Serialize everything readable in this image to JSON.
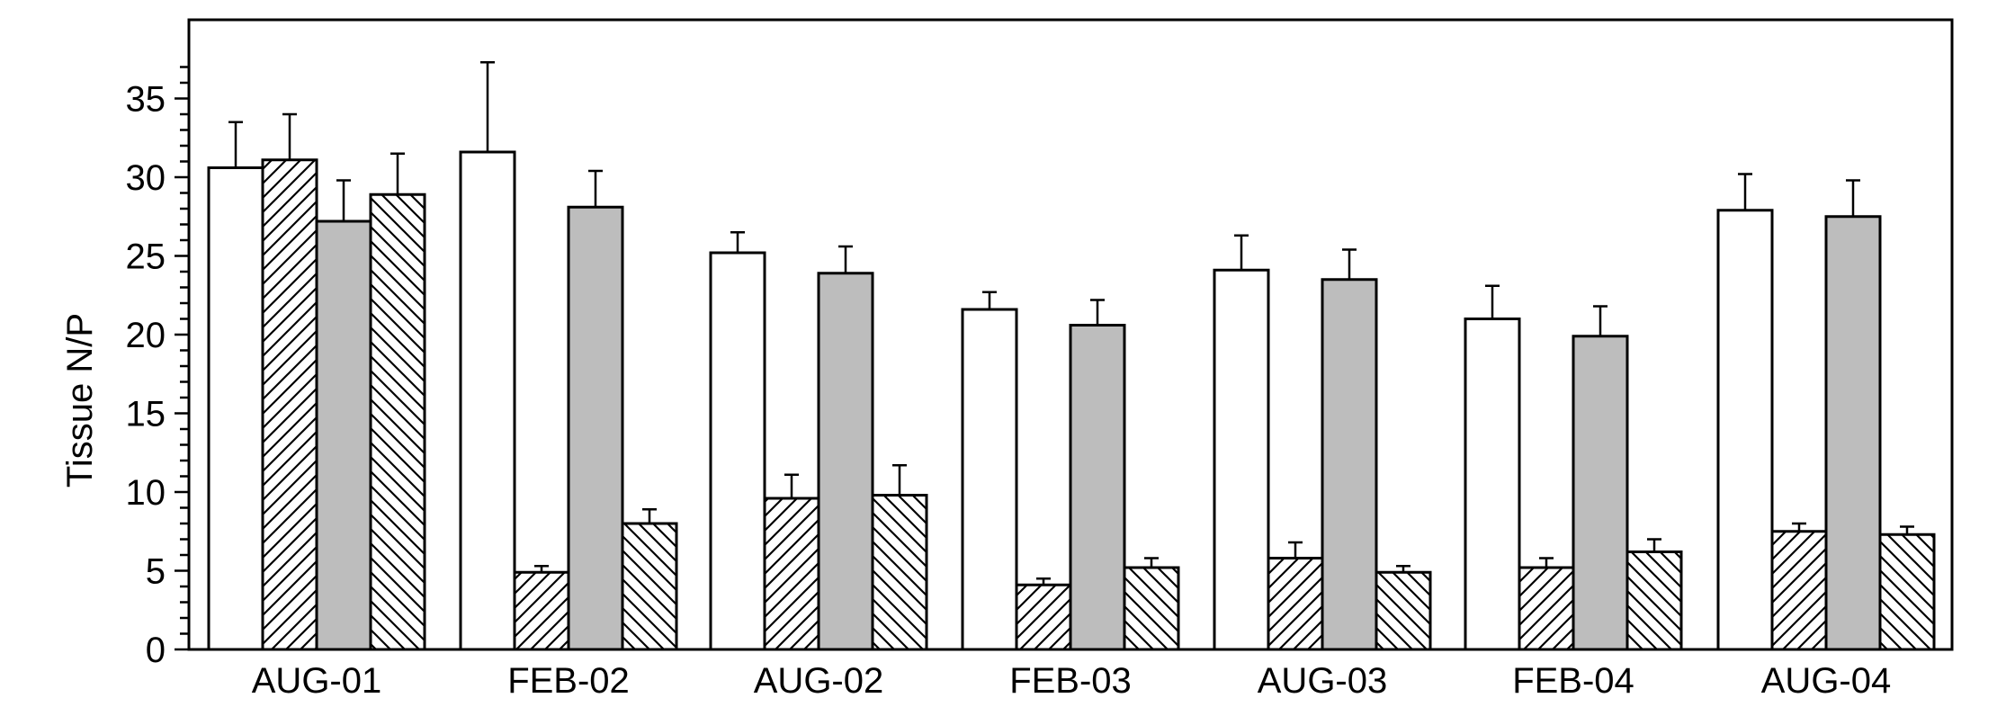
{
  "chart_data": {
    "type": "bar",
    "title": "",
    "xlabel": "",
    "ylabel": "Tissue N/P",
    "ylim": [
      0,
      40
    ],
    "y_ticks": [
      0,
      5,
      10,
      15,
      20,
      25,
      30,
      35
    ],
    "grid": false,
    "legend": "none",
    "categories": [
      "AUG-01",
      "FEB-02",
      "AUG-02",
      "FEB-03",
      "AUG-03",
      "FEB-04",
      "AUG-04"
    ],
    "series": [
      {
        "fill": "white",
        "values": [
          30.6,
          31.6,
          25.2,
          21.6,
          24.1,
          21.0,
          27.9
        ],
        "errors": [
          2.9,
          5.7,
          1.3,
          1.1,
          2.2,
          2.1,
          2.3
        ]
      },
      {
        "fill": "hatch-forward",
        "values": [
          31.1,
          4.9,
          9.6,
          4.1,
          5.8,
          5.2,
          7.5
        ],
        "errors": [
          2.9,
          0.4,
          1.5,
          0.4,
          1.0,
          0.6,
          0.5
        ]
      },
      {
        "fill": "gray",
        "values": [
          27.2,
          28.1,
          23.9,
          20.6,
          23.5,
          19.9,
          27.5
        ],
        "errors": [
          2.6,
          2.3,
          1.7,
          1.6,
          1.9,
          1.9,
          2.3
        ]
      },
      {
        "fill": "hatch-backward",
        "values": [
          28.9,
          8.0,
          9.8,
          5.2,
          4.9,
          6.2,
          7.3
        ],
        "errors": [
          2.6,
          0.9,
          1.9,
          0.6,
          0.4,
          0.8,
          0.5
        ]
      }
    ]
  },
  "colors": {
    "gray": "#bdbdbd",
    "white": "#ffffff",
    "line": "#000000"
  }
}
